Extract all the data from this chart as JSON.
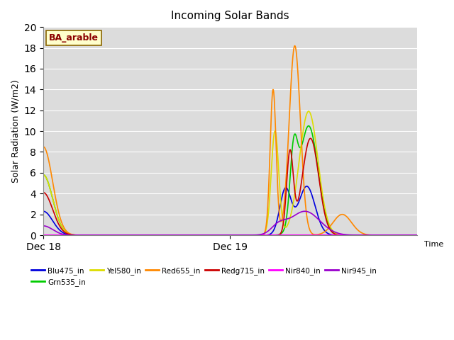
{
  "title": "Incoming Solar Bands",
  "ylabel": "Solar Radiation (W/m2)",
  "xlabel": "Time",
  "annotation": "BA_arable",
  "ylim": [
    0,
    20
  ],
  "background_color": "#dcdcdc",
  "series_order": [
    "Blu475_in",
    "Grn535_in",
    "Yel580_in",
    "Red655_in",
    "Redg715_in",
    "Nir840_in",
    "Nir945_in"
  ],
  "series": {
    "Blu475_in": {
      "color": "#0000dd",
      "lw": 1.2
    },
    "Grn535_in": {
      "color": "#00cc00",
      "lw": 1.2
    },
    "Yel580_in": {
      "color": "#dddd00",
      "lw": 1.2
    },
    "Red655_in": {
      "color": "#ff8800",
      "lw": 1.2
    },
    "Redg715_in": {
      "color": "#cc0000",
      "lw": 1.2
    },
    "Nir840_in": {
      "color": "#ff00ff",
      "lw": 1.5
    },
    "Nir945_in": {
      "color": "#9900cc",
      "lw": 1.2
    }
  },
  "legend_order": [
    "Blu475_in",
    "Grn535_in",
    "Yel580_in",
    "Red655_in",
    "Redg715_in",
    "Nir840_in",
    "Nir945_in"
  ]
}
